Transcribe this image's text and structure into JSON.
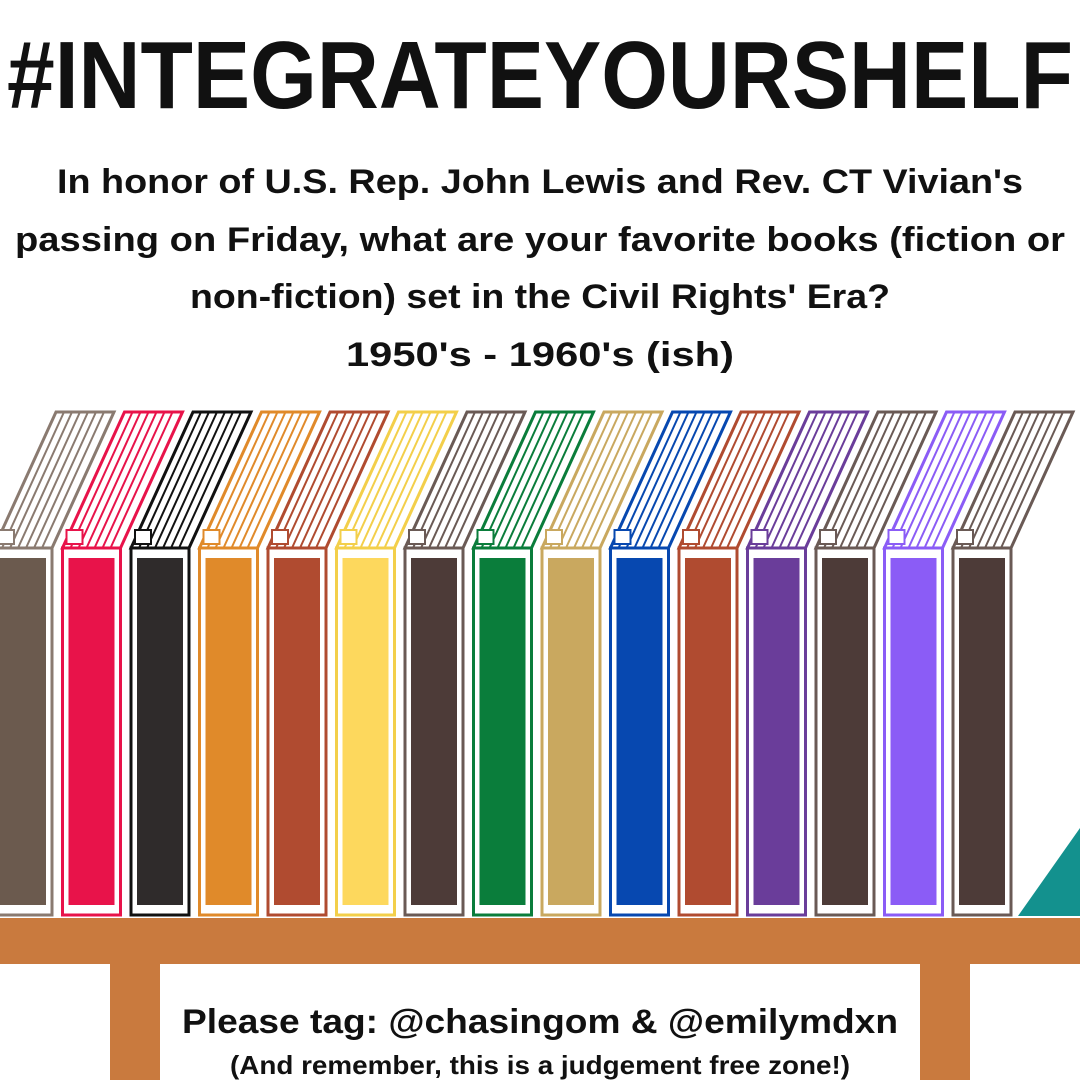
{
  "header": {
    "title": "#INTEGRATEYOURSHELF"
  },
  "body": {
    "lines": [
      "In honor of U.S. Rep. John Lewis and Rev. CT Vivian's",
      "passing on Friday, what are your favorite books (fiction or",
      "non-fiction) set in the Civil Rights' Era?",
      "1950's - 1960's (ish)"
    ]
  },
  "footer": {
    "tag": "Please tag: @chasingom & @emilymdxn",
    "note": "(And remember, this is a judgement free zone!)"
  }
}
